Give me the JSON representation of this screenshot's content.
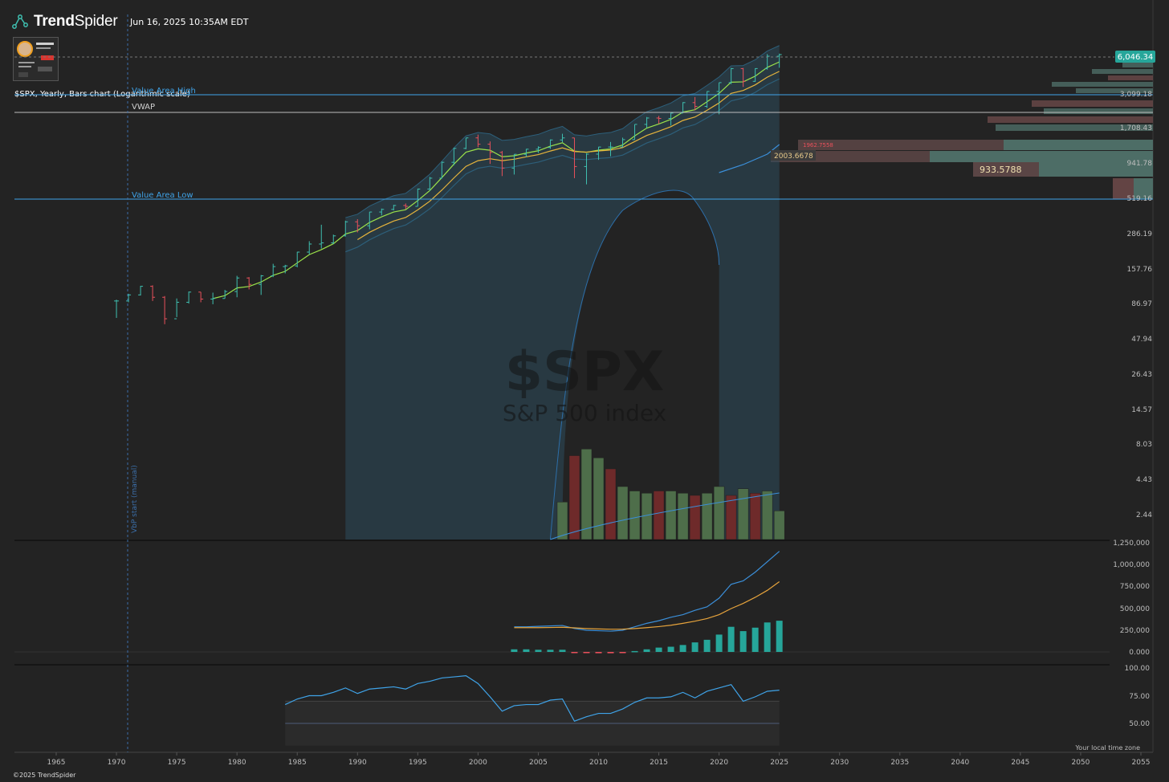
{
  "header": {
    "brand": "TrendSpider",
    "brand_prefix": "Trend",
    "brand_suffix": "Spider",
    "datetime": "Jun 16, 2025 10:35AM EDT"
  },
  "chart_description": "$SPX, Yearly, Bars chart (Logarithmic scale)",
  "watermark": {
    "symbol": "$SPX",
    "name": "S&P 500 index"
  },
  "footer": {
    "copyright": "©2025 TrendSpider",
    "timezone_note": "Your local time zone"
  },
  "colors": {
    "background": "#232323",
    "up_bar": "#3fbfb0",
    "down_bar": "#e8505b",
    "price_badge": "#26a69a",
    "ema_fast": "#9be24a",
    "ema_slow": "#e6b43c",
    "band_line": "#3b8fd9",
    "value_area": "#3fa3e8"
  },
  "icons": {
    "logo": "trendspider-logo-icon",
    "avatar": "avatar-thumbnail"
  },
  "chart_data": [
    {
      "type": "bar",
      "subtype": "ohlc",
      "title": "",
      "scale": "log",
      "x": [
        1970,
        1971,
        1972,
        1973,
        1974,
        1975,
        1976,
        1977,
        1978,
        1979,
        1980,
        1981,
        1982,
        1983,
        1984,
        1985,
        1986,
        1987,
        1988,
        1989,
        1990,
        1991,
        1992,
        1993,
        1994,
        1995,
        1996,
        1997,
        1998,
        1999,
        2000,
        2001,
        2002,
        2003,
        2004,
        2005,
        2006,
        2007,
        2008,
        2009,
        2010,
        2011,
        2012,
        2013,
        2014,
        2015,
        2016,
        2017,
        2018,
        2019,
        2020,
        2021,
        2022,
        2023,
        2024,
        2025
      ],
      "ohlc": [
        [
          92,
          94,
          69,
          92
        ],
        [
          92,
          104,
          90,
          102
        ],
        [
          102,
          119,
          101,
          118
        ],
        [
          118,
          120,
          92,
          98
        ],
        [
          98,
          100,
          62,
          68
        ],
        [
          68,
          96,
          70,
          90
        ],
        [
          90,
          108,
          88,
          107
        ],
        [
          107,
          107,
          90,
          95
        ],
        [
          95,
          106,
          87,
          96
        ],
        [
          96,
          111,
          96,
          108
        ],
        [
          108,
          141,
          98,
          136
        ],
        [
          136,
          138,
          112,
          122
        ],
        [
          122,
          143,
          102,
          141
        ],
        [
          141,
          173,
          138,
          165
        ],
        [
          165,
          170,
          147,
          167
        ],
        [
          167,
          212,
          163,
          211
        ],
        [
          211,
          254,
          203,
          242
        ],
        [
          242,
          336,
          224,
          247
        ],
        [
          247,
          284,
          242,
          278
        ],
        [
          278,
          360,
          275,
          353
        ],
        [
          353,
          369,
          295,
          330
        ],
        [
          330,
          418,
          311,
          417
        ],
        [
          417,
          442,
          394,
          436
        ],
        [
          436,
          471,
          429,
          466
        ],
        [
          466,
          482,
          438,
          459
        ],
        [
          459,
          621,
          459,
          616
        ],
        [
          616,
          757,
          598,
          741
        ],
        [
          741,
          983,
          737,
          970
        ],
        [
          970,
          1241,
          923,
          1229
        ],
        [
          1229,
          1470,
          1212,
          1469
        ],
        [
          1469,
          1553,
          1254,
          1320
        ],
        [
          1320,
          1383,
          944,
          1148
        ],
        [
          1148,
          1176,
          768,
          880
        ],
        [
          880,
          1112,
          788,
          1112
        ],
        [
          1112,
          1217,
          1063,
          1212
        ],
        [
          1212,
          1273,
          1137,
          1248
        ],
        [
          1248,
          1431,
          1219,
          1418
        ],
        [
          1418,
          1576,
          1364,
          1468
        ],
        [
          1468,
          1471,
          741,
          903
        ],
        [
          903,
          1130,
          667,
          1115
        ],
        [
          1115,
          1263,
          1011,
          1258
        ],
        [
          1258,
          1371,
          1075,
          1258
        ],
        [
          1258,
          1475,
          1258,
          1426
        ],
        [
          1426,
          1849,
          1426,
          1848
        ],
        [
          1848,
          2094,
          1737,
          2059
        ],
        [
          2059,
          2135,
          1867,
          2044
        ],
        [
          2044,
          2277,
          1810,
          2239
        ],
        [
          2239,
          2694,
          2239,
          2674
        ],
        [
          2674,
          2941,
          2347,
          2507
        ],
        [
          2507,
          3240,
          2444,
          3231
        ],
        [
          3231,
          3756,
          2192,
          3756
        ],
        [
          3756,
          4819,
          3662,
          4766
        ],
        [
          4766,
          4819,
          3492,
          3840
        ],
        [
          3840,
          4794,
          3809,
          4770
        ],
        [
          4770,
          6100,
          4683,
          5882
        ],
        [
          5882,
          6147,
          4835,
          6046
        ]
      ],
      "last_price": "6,046.34",
      "y_ticks": [
        "3,099.18",
        "1,708.43",
        "941.78",
        "519.16",
        "286.19",
        "157.76",
        "86.97",
        "47.94",
        "26.43",
        "14.57",
        "8.03",
        "4.43",
        "2.44"
      ],
      "volume_series_values": [
        0.85,
        1.9,
        2.05,
        1.85,
        1.6,
        1.2,
        1.1,
        1.05,
        1.1,
        1.1,
        1.05,
        1.0,
        1.05,
        1.2,
        1.0,
        1.15,
        1.05,
        1.1,
        0.65
      ],
      "volume_colors": [
        "up",
        "down",
        "up",
        "up",
        "down",
        "up",
        "up",
        "up",
        "down",
        "up",
        "up",
        "down",
        "up",
        "up",
        "down",
        "up",
        "down",
        "up",
        "up"
      ],
      "value_area_high": "Value Area High",
      "value_area_low": "Value Area Low",
      "vwap_label": "VWAP",
      "vwap_value": "2003.6678",
      "poc_value": "933.5788",
      "profile_label_small": "1962.7558",
      "anchor_label": "VbP start (manual)"
    },
    {
      "type": "bar",
      "title": "",
      "x": [
        2003,
        2004,
        2005,
        2006,
        2007,
        2008,
        2009,
        2010,
        2011,
        2012,
        2013,
        2014,
        2015,
        2016,
        2017,
        2018,
        2019,
        2020,
        2021,
        2022,
        2023,
        2024,
        2025
      ],
      "values": [
        30000,
        30000,
        25000,
        25000,
        25000,
        -5000,
        -10000,
        -15000,
        -15000,
        -10000,
        10000,
        30000,
        50000,
        60000,
        80000,
        110000,
        140000,
        200000,
        290000,
        240000,
        280000,
        340000,
        360000
      ],
      "line_fast": [
        290000,
        290000,
        295000,
        300000,
        305000,
        270000,
        250000,
        245000,
        240000,
        250000,
        290000,
        330000,
        360000,
        400000,
        430000,
        480000,
        520000,
        620000,
        780000,
        820000,
        920000,
        1040000,
        1160000
      ],
      "line_slow": [
        280000,
        280000,
        280000,
        282000,
        285000,
        278000,
        270000,
        265000,
        262000,
        263000,
        270000,
        280000,
        292000,
        308000,
        330000,
        355000,
        385000,
        430000,
        500000,
        560000,
        630000,
        710000,
        810000
      ],
      "y_ticks": [
        "1,250,000",
        "1,000,000",
        "750,000",
        "500,000",
        "250,000",
        "0.000"
      ]
    },
    {
      "type": "line",
      "title": "",
      "x": [
        1984,
        1985,
        1986,
        1987,
        1988,
        1989,
        1990,
        1991,
        1992,
        1993,
        1994,
        1995,
        1996,
        1997,
        1998,
        1999,
        2000,
        2001,
        2002,
        2003,
        2004,
        2005,
        2006,
        2007,
        2008,
        2009,
        2010,
        2011,
        2012,
        2013,
        2014,
        2015,
        2016,
        2017,
        2018,
        2019,
        2020,
        2021,
        2022,
        2023,
        2024,
        2025
      ],
      "values": [
        67,
        72,
        75,
        75,
        78,
        82,
        77,
        81,
        82,
        83,
        81,
        86,
        88,
        91,
        92,
        93,
        86,
        74,
        61,
        66,
        67,
        67,
        71,
        72,
        52,
        56,
        59,
        59,
        63,
        69,
        73,
        73,
        74,
        78,
        73,
        79,
        82,
        85,
        70,
        74,
        79,
        80
      ],
      "ylim": [
        40,
        100
      ],
      "y_ticks": [
        "100.00",
        "75.00",
        "50.00"
      ]
    }
  ],
  "x_axis_ticks": [
    "1965",
    "1970",
    "1975",
    "1980",
    "1985",
    "1990",
    "1995",
    "2000",
    "2005",
    "2010",
    "2015",
    "2020",
    "2025",
    "2030",
    "2035",
    "2040",
    "2045",
    "2050",
    "2055"
  ]
}
